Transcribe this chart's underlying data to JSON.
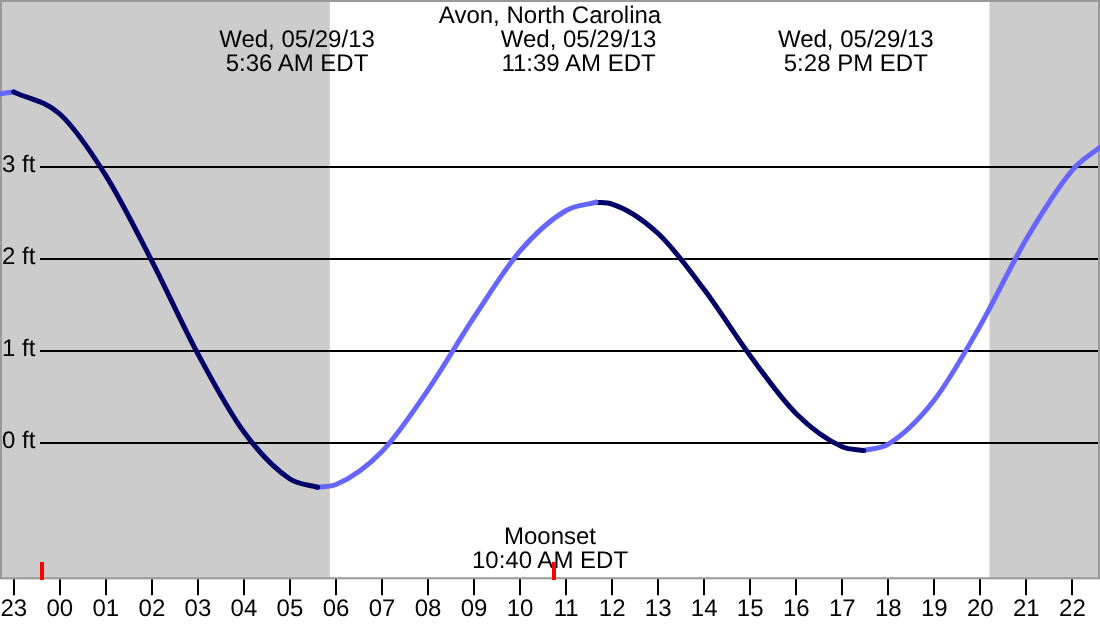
{
  "chart_data": {
    "type": "line",
    "title": "Avon, North Carolina",
    "xlim": [
      "--05-28T22:42",
      "--05-29T22:36"
    ],
    "xticks": [
      {
        "value": "--05-28T23:00",
        "label": "23"
      },
      {
        "value": "--05-29T00:00",
        "label": "00"
      },
      {
        "value": "--05-29T01:00",
        "label": "01"
      },
      {
        "value": "--05-29T02:00",
        "label": "02"
      },
      {
        "value": "--05-29T03:00",
        "label": "03"
      },
      {
        "value": "--05-29T04:00",
        "label": "04"
      },
      {
        "value": "--05-29T05:00",
        "label": "05"
      },
      {
        "value": "--05-29T06:00",
        "label": "06"
      },
      {
        "value": "--05-29T07:00",
        "label": "07"
      },
      {
        "value": "--05-29T08:00",
        "label": "08"
      },
      {
        "value": "--05-29T09:00",
        "label": "09"
      },
      {
        "value": "--05-29T10:00",
        "label": "10"
      },
      {
        "value": "--05-29T11:00",
        "label": "11"
      },
      {
        "value": "--05-29T12:00",
        "label": "12"
      },
      {
        "value": "--05-29T13:00",
        "label": "13"
      },
      {
        "value": "--05-29T14:00",
        "label": "14"
      },
      {
        "value": "--05-29T15:00",
        "label": "15"
      },
      {
        "value": "--05-29T16:00",
        "label": "16"
      },
      {
        "value": "--05-29T17:00",
        "label": "17"
      },
      {
        "value": "--05-29T18:00",
        "label": "18"
      },
      {
        "value": "--05-29T19:00",
        "label": "19"
      },
      {
        "value": "--05-29T20:00",
        "label": "20"
      },
      {
        "value": "--05-29T21:00",
        "label": "21"
      },
      {
        "value": "--05-29T22:00",
        "label": "22"
      }
    ],
    "ylim": [
      -1.5,
      4.8
    ],
    "yticks": [
      {
        "value": 0,
        "label": "0 ft"
      },
      {
        "value": 1,
        "label": "1 ft"
      },
      {
        "value": 2,
        "label": "2 ft"
      },
      {
        "value": 3,
        "label": "3 ft"
      }
    ],
    "grid": "y",
    "legend": false,
    "marker": "none",
    "line_style": "solid",
    "series": [
      {
        "color": "#000066",
        "x": [
          "--05-28T23:00",
          "--05-29T00:00",
          "--05-29T01:00",
          "--05-29T02:00",
          "--05-29T03:00",
          "--05-29T04:00",
          "--05-29T05:00",
          "--05-29T05:36"
        ],
        "values": [
          3.8,
          3.56,
          2.89,
          1.96,
          0.95,
          0.1,
          -0.41,
          -0.5
        ]
      },
      {
        "color": "#6666ff",
        "x": [
          "--05-28T22:42",
          "--05-28T23:00"
        ],
        "values": [
          3.78,
          3.8
        ]
      },
      {
        "color": "#6666ff",
        "x": [
          "--05-29T05:36",
          "--05-29T06:00",
          "--05-29T07:00",
          "--05-29T08:00",
          "--05-29T09:00",
          "--05-29T10:00",
          "--05-29T11:00",
          "--05-29T11:39"
        ],
        "values": [
          -0.5,
          -0.47,
          -0.11,
          0.56,
          1.35,
          2.07,
          2.51,
          2.6
        ]
      },
      {
        "color": "#000066",
        "x": [
          "--05-29T11:39",
          "--05-29T12:00",
          "--05-29T13:00",
          "--05-29T14:00",
          "--05-29T15:00",
          "--05-29T16:00",
          "--05-29T17:00",
          "--05-29T17:28"
        ],
        "values": [
          2.6,
          2.58,
          2.26,
          1.65,
          0.93,
          0.3,
          -0.06,
          -0.1
        ]
      },
      {
        "color": "#6666ff",
        "x": [
          "--05-29T17:28",
          "--05-29T18:00",
          "--05-29T19:00",
          "--05-29T20:00",
          "--05-29T21:00",
          "--05-29T22:00",
          "--05-29T22:36"
        ],
        "values": [
          -0.1,
          -0.03,
          0.45,
          1.26,
          2.2,
          2.95,
          3.2
        ]
      }
    ],
    "bands": [
      {
        "axis": "x",
        "from": "--05-28T22:42",
        "to": "--05-29T05:52",
        "color": "#cccccc"
      },
      {
        "axis": "x",
        "from": "--05-29T20:12",
        "to": "--05-29T22:36",
        "color": "#cccccc"
      }
    ],
    "annotations": [
      "Wed, 05/29/13\n5:36 AM EDT",
      "Wed, 05/29/13\n11:39 AM EDT",
      "Wed, 05/29/13\n5:28 PM EDT",
      "Moonset\n10:40 AM EDT"
    ]
  }
}
